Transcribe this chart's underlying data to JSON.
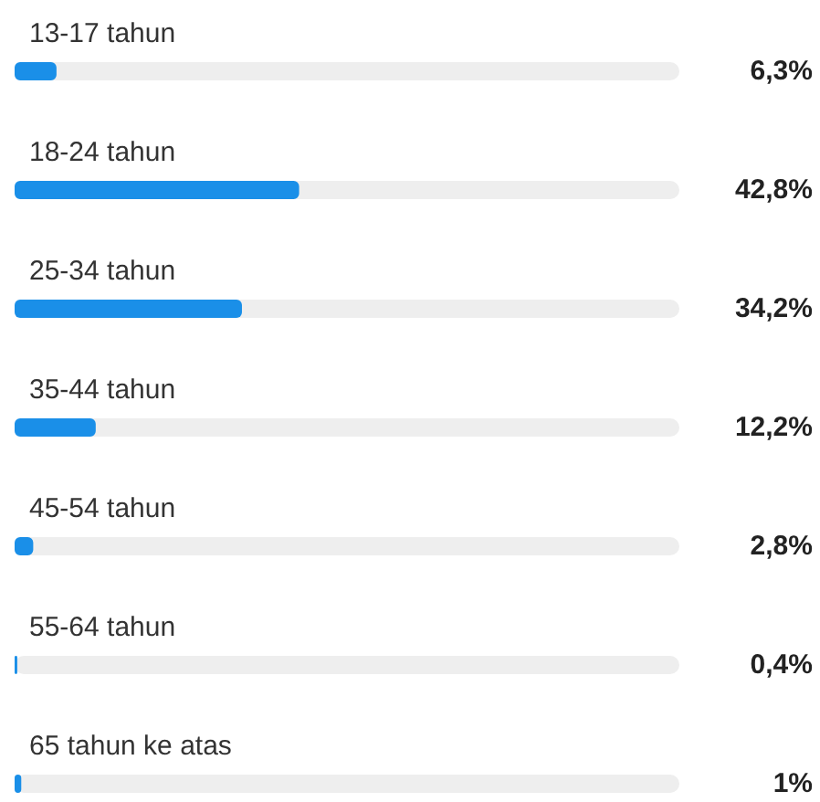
{
  "chart_data": {
    "type": "bar",
    "orientation": "horizontal",
    "categories": [
      "13-17 tahun",
      "18-24 tahun",
      "25-34 tahun",
      "35-44 tahun",
      "45-54 tahun",
      "55-64 tahun",
      "65 tahun ke atas"
    ],
    "values": [
      6.3,
      42.8,
      34.2,
      12.2,
      2.8,
      0.4,
      1
    ],
    "value_labels": [
      "6,3%",
      "42,8%",
      "34,2%",
      "12,2%",
      "2,8%",
      "0,4%",
      "1%"
    ],
    "color": "#1a8fe8",
    "xlim": [
      0,
      100
    ],
    "tick_labels": "y"
  }
}
